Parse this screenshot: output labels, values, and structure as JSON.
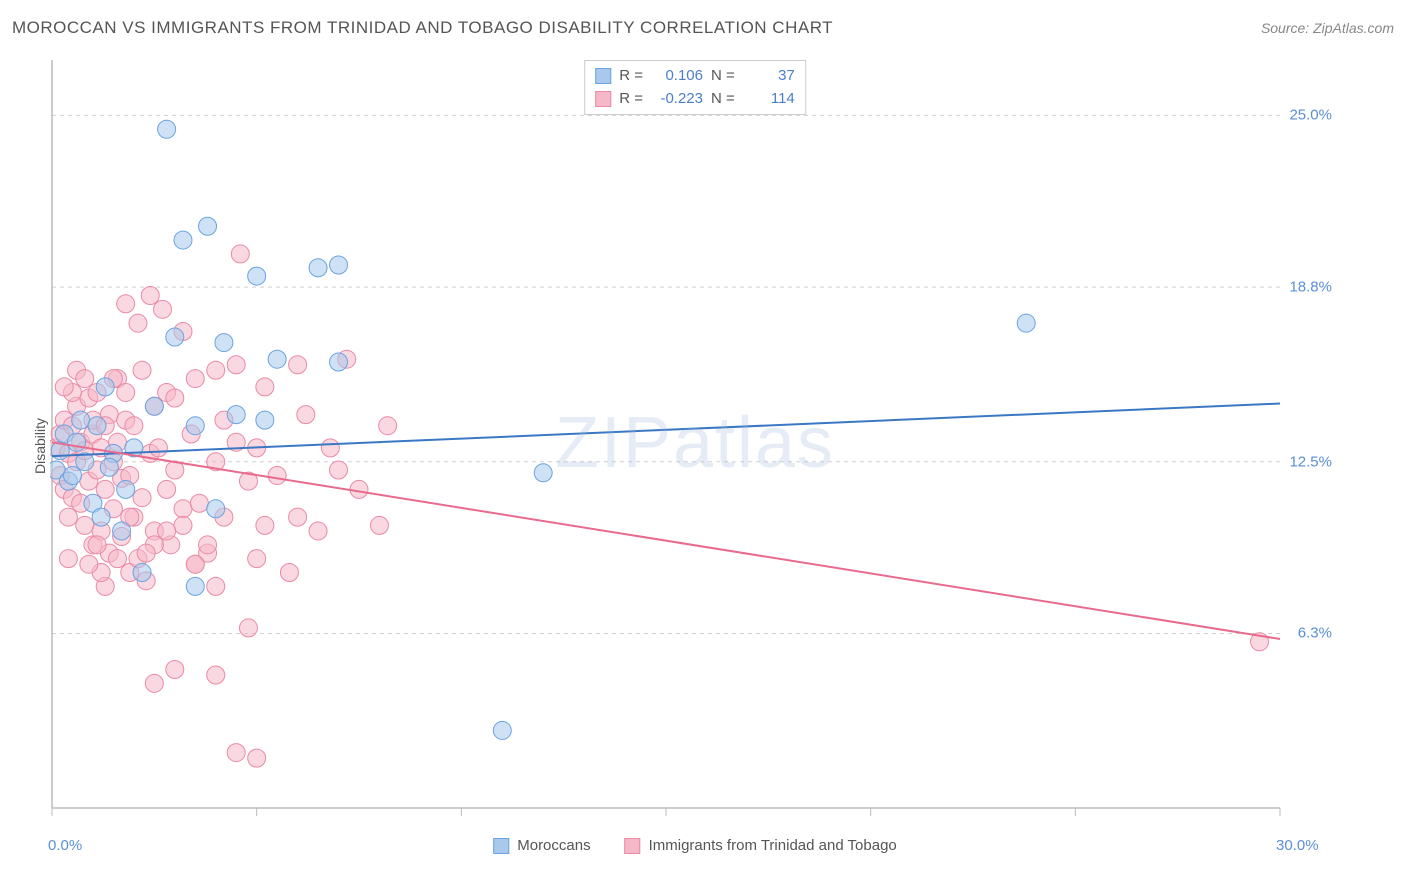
{
  "header": {
    "title": "MOROCCAN VS IMMIGRANTS FROM TRINIDAD AND TOBAGO DISABILITY CORRELATION CHART",
    "source_prefix": "Source: ",
    "source_name": "ZipAtlas.com"
  },
  "ylabel": "Disability",
  "watermark": "ZIPatlas",
  "chart": {
    "type": "scatter",
    "xlim": [
      0,
      30
    ],
    "ylim": [
      0,
      27
    ],
    "x_axis_labels": [
      {
        "val": 0.0,
        "text": "0.0%"
      },
      {
        "val": 30.0,
        "text": "30.0%"
      }
    ],
    "y_axis_labels": [
      {
        "val": 6.3,
        "text": "6.3%"
      },
      {
        "val": 12.5,
        "text": "12.5%"
      },
      {
        "val": 18.8,
        "text": "18.8%"
      },
      {
        "val": 25.0,
        "text": "25.0%"
      }
    ],
    "x_ticks": [
      0,
      5,
      10,
      15,
      20,
      25,
      30
    ],
    "grid_color": "#d0d0d0",
    "axis_color": "#bbbbbb",
    "background_color": "#ffffff",
    "marker_radius": 9,
    "marker_opacity": 0.55,
    "line_width": 2
  },
  "series": [
    {
      "name": "Moroccans",
      "fill": "#a8c8ec",
      "stroke": "#6ba3e0",
      "line_color": "#3b78c4",
      "R": "0.106",
      "N": "37",
      "trend": {
        "x1": 0,
        "y1": 12.7,
        "x2": 30,
        "y2": 14.6
      },
      "points": [
        [
          0.1,
          12.2
        ],
        [
          0.2,
          12.9
        ],
        [
          0.3,
          13.5
        ],
        [
          0.4,
          11.8
        ],
        [
          0.5,
          12.0
        ],
        [
          0.6,
          13.2
        ],
        [
          0.7,
          14.0
        ],
        [
          0.8,
          12.5
        ],
        [
          1.0,
          11.0
        ],
        [
          1.1,
          13.8
        ],
        [
          1.2,
          10.5
        ],
        [
          1.3,
          15.2
        ],
        [
          1.5,
          12.8
        ],
        [
          1.7,
          10.0
        ],
        [
          1.8,
          11.5
        ],
        [
          2.0,
          13.0
        ],
        [
          2.2,
          8.5
        ],
        [
          2.5,
          14.5
        ],
        [
          2.8,
          24.5
        ],
        [
          3.0,
          17.0
        ],
        [
          3.2,
          20.5
        ],
        [
          3.5,
          13.8
        ],
        [
          3.8,
          21.0
        ],
        [
          4.0,
          10.8
        ],
        [
          4.2,
          16.8
        ],
        [
          4.5,
          14.2
        ],
        [
          5.0,
          19.2
        ],
        [
          5.2,
          14.0
        ],
        [
          5.5,
          16.2
        ],
        [
          6.5,
          19.5
        ],
        [
          7.0,
          19.6
        ],
        [
          7.0,
          16.1
        ],
        [
          11.0,
          2.8
        ],
        [
          12.0,
          12.1
        ],
        [
          23.8,
          17.5
        ],
        [
          3.5,
          8.0
        ],
        [
          1.4,
          12.3
        ]
      ]
    },
    {
      "name": "Immigrants from Trinidad and Tobago",
      "fill": "#f5b8c8",
      "stroke": "#ea8aa5",
      "line_color": "#e86b8e",
      "R": "-0.223",
      "N": "114",
      "trend": {
        "x1": 0,
        "y1": 13.2,
        "x2": 30,
        "y2": 6.1
      },
      "points": [
        [
          0.1,
          13.0
        ],
        [
          0.2,
          12.0
        ],
        [
          0.2,
          13.5
        ],
        [
          0.3,
          11.5
        ],
        [
          0.3,
          14.0
        ],
        [
          0.4,
          12.8
        ],
        [
          0.4,
          10.5
        ],
        [
          0.5,
          13.8
        ],
        [
          0.5,
          11.2
        ],
        [
          0.6,
          12.5
        ],
        [
          0.6,
          14.5
        ],
        [
          0.7,
          11.0
        ],
        [
          0.7,
          13.2
        ],
        [
          0.8,
          10.2
        ],
        [
          0.8,
          12.9
        ],
        [
          0.9,
          14.8
        ],
        [
          0.9,
          11.8
        ],
        [
          1.0,
          13.5
        ],
        [
          1.0,
          9.5
        ],
        [
          1.1,
          12.2
        ],
        [
          1.1,
          15.0
        ],
        [
          1.2,
          10.0
        ],
        [
          1.2,
          13.0
        ],
        [
          1.3,
          11.5
        ],
        [
          1.3,
          8.0
        ],
        [
          1.4,
          14.2
        ],
        [
          1.4,
          9.2
        ],
        [
          1.5,
          12.5
        ],
        [
          1.5,
          10.8
        ],
        [
          1.6,
          15.5
        ],
        [
          1.6,
          13.2
        ],
        [
          1.7,
          9.8
        ],
        [
          1.7,
          11.9
        ],
        [
          1.8,
          14.0
        ],
        [
          1.8,
          18.2
        ],
        [
          1.9,
          8.5
        ],
        [
          1.9,
          12.0
        ],
        [
          2.0,
          10.5
        ],
        [
          2.0,
          13.8
        ],
        [
          2.1,
          17.5
        ],
        [
          2.1,
          9.0
        ],
        [
          2.2,
          11.2
        ],
        [
          2.2,
          15.8
        ],
        [
          2.3,
          8.2
        ],
        [
          2.4,
          12.8
        ],
        [
          2.4,
          18.5
        ],
        [
          2.5,
          14.5
        ],
        [
          2.5,
          10.0
        ],
        [
          2.6,
          13.0
        ],
        [
          2.7,
          18.0
        ],
        [
          2.8,
          11.5
        ],
        [
          2.8,
          15.0
        ],
        [
          2.9,
          9.5
        ],
        [
          3.0,
          12.2
        ],
        [
          3.0,
          14.8
        ],
        [
          3.2,
          10.8
        ],
        [
          3.2,
          17.2
        ],
        [
          3.4,
          13.5
        ],
        [
          3.5,
          8.8
        ],
        [
          3.5,
          15.5
        ],
        [
          3.6,
          11.0
        ],
        [
          3.8,
          9.2
        ],
        [
          4.0,
          15.8
        ],
        [
          4.0,
          12.5
        ],
        [
          4.2,
          10.5
        ],
        [
          4.2,
          14.0
        ],
        [
          4.5,
          13.2
        ],
        [
          4.5,
          16.0
        ],
        [
          4.6,
          20.0
        ],
        [
          4.8,
          11.8
        ],
        [
          5.0,
          9.0
        ],
        [
          5.0,
          13.0
        ],
        [
          5.2,
          10.2
        ],
        [
          5.2,
          15.2
        ],
        [
          5.5,
          12.0
        ],
        [
          5.8,
          8.5
        ],
        [
          6.0,
          10.5
        ],
        [
          6.0,
          16.0
        ],
        [
          6.2,
          14.2
        ],
        [
          6.5,
          10.0
        ],
        [
          6.8,
          13.0
        ],
        [
          7.0,
          12.2
        ],
        [
          7.2,
          16.2
        ],
        [
          7.5,
          11.5
        ],
        [
          8.0,
          10.2
        ],
        [
          8.2,
          13.8
        ],
        [
          2.5,
          4.5
        ],
        [
          3.0,
          5.0
        ],
        [
          4.0,
          4.8
        ],
        [
          4.5,
          2.0
        ],
        [
          5.0,
          1.8
        ],
        [
          4.8,
          6.5
        ],
        [
          0.5,
          15.0
        ],
        [
          0.6,
          15.8
        ],
        [
          0.8,
          15.5
        ],
        [
          1.0,
          14.0
        ],
        [
          1.2,
          8.5
        ],
        [
          1.5,
          15.5
        ],
        [
          1.8,
          15.0
        ],
        [
          2.5,
          9.5
        ],
        [
          3.5,
          8.8
        ],
        [
          3.8,
          9.5
        ],
        [
          4.0,
          8.0
        ],
        [
          3.2,
          10.2
        ],
        [
          2.8,
          10.0
        ],
        [
          1.9,
          10.5
        ],
        [
          1.6,
          9.0
        ],
        [
          2.3,
          9.2
        ],
        [
          0.4,
          9.0
        ],
        [
          0.9,
          8.8
        ],
        [
          29.5,
          6.0
        ],
        [
          1.3,
          13.8
        ],
        [
          0.3,
          15.2
        ],
        [
          1.1,
          9.5
        ]
      ]
    }
  ],
  "stats_legend": {
    "rows": [
      {
        "swatch": 0,
        "R_label": "R =",
        "N_label": "N ="
      },
      {
        "swatch": 1,
        "R_label": "R =",
        "N_label": "N ="
      }
    ]
  },
  "bottom_legend": {
    "items": [
      {
        "series": 0
      },
      {
        "series": 1
      }
    ]
  }
}
